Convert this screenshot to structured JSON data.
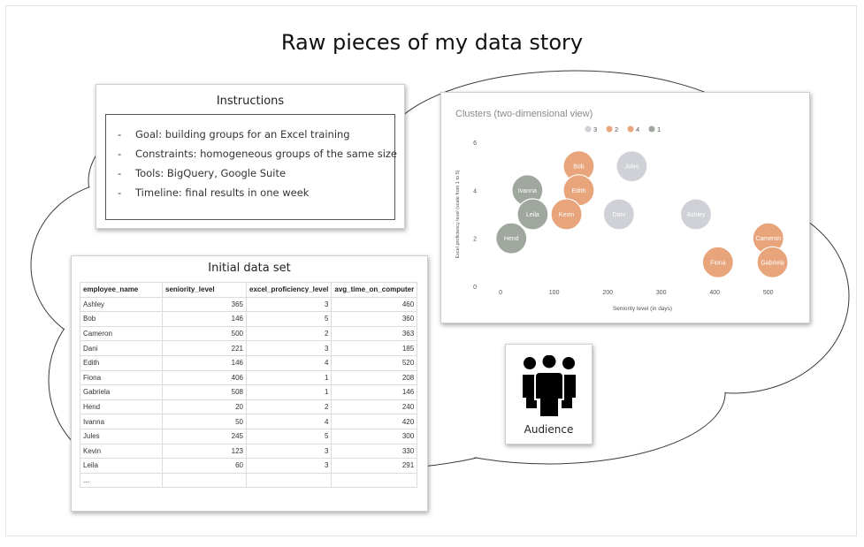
{
  "title": "Raw pieces of my data story",
  "instructions": {
    "title": "Instructions",
    "items": [
      "Goal: building groups for an Excel training",
      "Constraints: homogeneous groups of the same size",
      "Tools: BigQuery, Google Suite",
      "Timeline: final results in one week"
    ]
  },
  "dataset": {
    "title": "Initial data set",
    "columns": [
      "employee_name",
      "seniority_level",
      "excel_proficiency_level",
      "avg_time_on_computer"
    ],
    "rows": [
      [
        "Ashley",
        "365",
        "3",
        "460"
      ],
      [
        "Bob",
        "146",
        "5",
        "360"
      ],
      [
        "Cameron",
        "500",
        "2",
        "363"
      ],
      [
        "Dani",
        "221",
        "3",
        "185"
      ],
      [
        "Edith",
        "146",
        "4",
        "520"
      ],
      [
        "Fiona",
        "406",
        "1",
        "208"
      ],
      [
        "Gabriela",
        "508",
        "1",
        "146"
      ],
      [
        "Hend",
        "20",
        "2",
        "240"
      ],
      [
        "Ivanna",
        "50",
        "4",
        "420"
      ],
      [
        "Jules",
        "245",
        "5",
        "300"
      ],
      [
        "Kevin",
        "123",
        "3",
        "330"
      ],
      [
        "Leila",
        "60",
        "3",
        "291"
      ],
      [
        "...",
        "",
        "",
        ""
      ]
    ]
  },
  "audience": {
    "label": "Audience"
  },
  "chart_data": {
    "type": "scatter",
    "title": "Clusters (two-dimensional view)",
    "xlabel": "Seniority level (in days)",
    "ylabel": "Excel proficiency level (scale from 1 to 5)",
    "xlim": [
      -20,
      550
    ],
    "ylim": [
      0,
      6
    ],
    "xticks": [
      "0",
      "100",
      "200",
      "300",
      "400",
      "500"
    ],
    "xtick_values": [
      0,
      100,
      200,
      300,
      400,
      500
    ],
    "yticks": [
      "0",
      "2",
      "4",
      "6"
    ],
    "ytick_values": [
      0,
      2,
      4,
      6
    ],
    "legend_position": "top-center",
    "legend": [
      {
        "label": "3",
        "color": "#cfd1d6"
      },
      {
        "label": "2",
        "color": "#e8a57b"
      },
      {
        "label": "4",
        "color": "#e8a57b"
      },
      {
        "label": "1",
        "color": "#9fa79e"
      }
    ],
    "series": [
      {
        "name": "3",
        "color": "#cfd1d6",
        "points": [
          {
            "label": "Jules",
            "x": 245,
            "y": 5
          },
          {
            "label": "Dani",
            "x": 221,
            "y": 3
          },
          {
            "label": "Ashley",
            "x": 365,
            "y": 3
          }
        ]
      },
      {
        "name": "2",
        "color": "#e8a57b",
        "points": [
          {
            "label": "Bob",
            "x": 146,
            "y": 5
          },
          {
            "label": "Edith",
            "x": 146,
            "y": 4
          },
          {
            "label": "Kevin",
            "x": 123,
            "y": 3
          }
        ]
      },
      {
        "name": "4",
        "color": "#e8a57b",
        "points": [
          {
            "label": "Cameron",
            "x": 500,
            "y": 2
          },
          {
            "label": "Fiona",
            "x": 406,
            "y": 1
          },
          {
            "label": "Gabriela",
            "x": 508,
            "y": 1
          }
        ]
      },
      {
        "name": "1",
        "color": "#9fa79e",
        "points": [
          {
            "label": "Ivanna",
            "x": 50,
            "y": 4
          },
          {
            "label": "Leila",
            "x": 60,
            "y": 3
          },
          {
            "label": "Hend",
            "x": 20,
            "y": 2
          }
        ]
      }
    ]
  }
}
